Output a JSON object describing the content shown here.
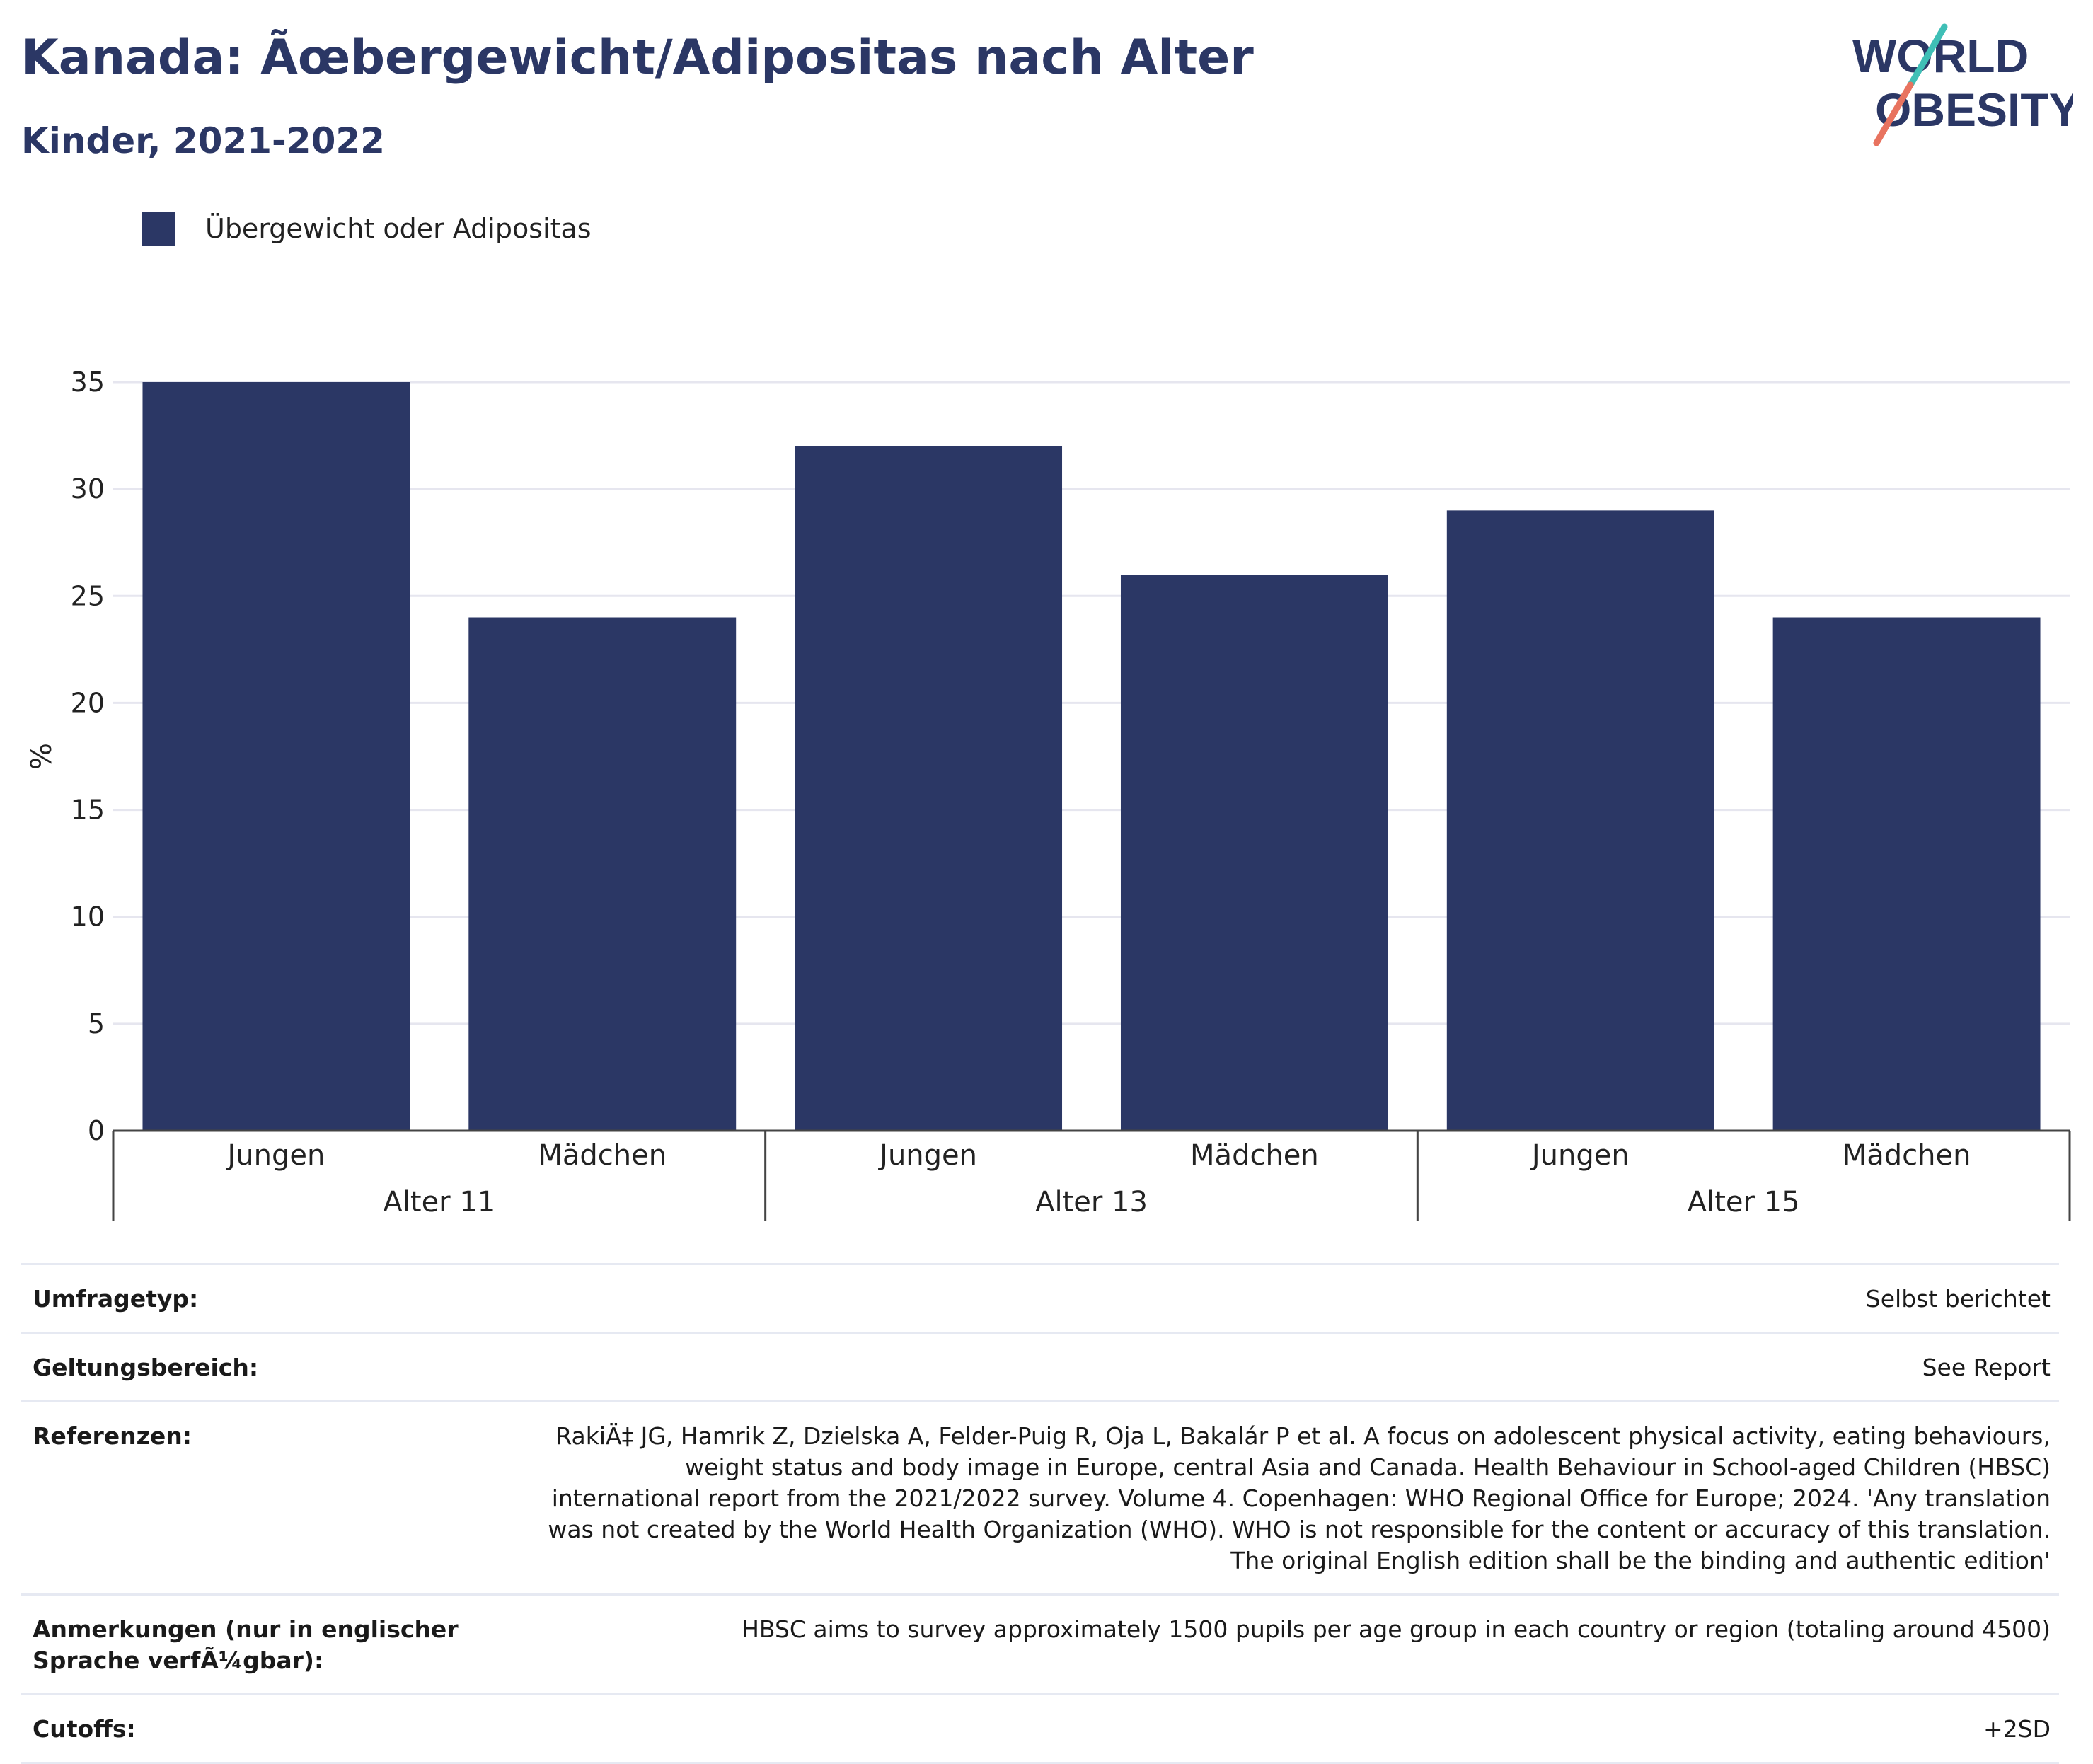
{
  "header": {
    "title": "Kanada: Ãœbergewicht/Adipositas nach Alter",
    "subtitle": "Kinder, 2021-2022"
  },
  "logo": {
    "line1": "WORLD",
    "line2": "OBESITY"
  },
  "colors": {
    "bar": "#2b3765",
    "text": "#2b3765",
    "logo_teal": "#3fbfb6",
    "logo_coral": "#e8735f",
    "grid": "#e6e6ef"
  },
  "chart_data": {
    "type": "bar",
    "series": [
      {
        "name": "Übergewicht oder Adipositas",
        "values": [
          35,
          24,
          32,
          26,
          29,
          24
        ]
      }
    ],
    "categories": [
      "Jungen",
      "Mädchen",
      "Jungen",
      "Mädchen",
      "Jungen",
      "Mädchen"
    ],
    "groups": [
      {
        "label": "Alter 11",
        "span": 2
      },
      {
        "label": "Alter 13",
        "span": 2
      },
      {
        "label": "Alter 15",
        "span": 2
      }
    ],
    "ylabel": "%",
    "ylim": [
      0,
      35
    ],
    "yticks": [
      0,
      5,
      10,
      15,
      20,
      25,
      30,
      35
    ],
    "grid": true,
    "legend_position": "top-left"
  },
  "meta": [
    {
      "key": "Umfragetyp:",
      "value": "Selbst berichtet"
    },
    {
      "key": "Geltungsbereich:",
      "value": "See Report"
    },
    {
      "key": "Referenzen:",
      "value": "RakiÄ‡ JG, Hamrik Z, Dzielska A, Felder-Puig R, Oja L, Bakalár P et al. A focus on adolescent physical activity, eating behaviours, weight status and body image in Europe, central Asia and Canada. Health Behaviour in School-aged Children (HBSC) international report from the 2021/2022 survey. Volume 4. Copenhagen: WHO Regional Office for Europe; 2024. 'Any translation was not created by the World Health Organization (WHO). WHO is not responsible for the content or accuracy of this translation. The original English edition shall be the binding and authentic edition'"
    },
    {
      "key": "Anmerkungen (nur in englischer Sprache verfÃ¼gbar):",
      "value": "HBSC aims to survey approximately 1500 pupils per age group in each country or region (totaling around 4500)"
    },
    {
      "key": "Cutoffs:",
      "value": "+2SD"
    }
  ]
}
